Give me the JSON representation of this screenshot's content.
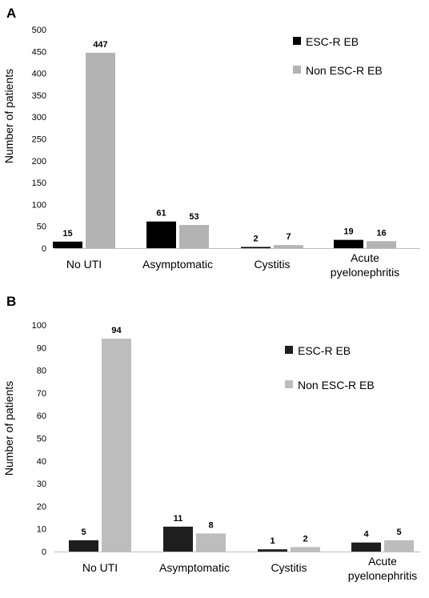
{
  "chart_data": [
    {
      "type": "bar",
      "panel": "A",
      "categories": [
        "No UTI",
        "Asymptomatic",
        "Cystitis",
        "Acute pyelonephritis"
      ],
      "series": [
        {
          "name": "ESC-R EB",
          "values": [
            15,
            61,
            2,
            19
          ],
          "color": "#000000"
        },
        {
          "name": "Non ESC-R EB",
          "values": [
            447,
            53,
            7,
            16
          ],
          "color": "#b3b3b3"
        }
      ],
      "ylabel": "Number of patients",
      "ylim": [
        0,
        500
      ],
      "yticks": [
        0,
        50,
        100,
        150,
        200,
        250,
        300,
        350,
        400,
        450,
        500
      ],
      "legend": "top-right",
      "grid": false
    },
    {
      "type": "bar",
      "panel": "B",
      "categories": [
        "No UTI",
        "Asymptomatic",
        "Cystitis",
        "Acute pyelonephritis"
      ],
      "series": [
        {
          "name": "ESC-R EB",
          "values": [
            5,
            11,
            1,
            4
          ],
          "color": "#1e1e1e"
        },
        {
          "name": "Non ESC-R EB",
          "values": [
            94,
            8,
            2,
            5
          ],
          "color": "#bdbdbd"
        }
      ],
      "ylabel": "Number of patients",
      "ylim": [
        0,
        100
      ],
      "yticks": [
        0,
        10,
        20,
        30,
        40,
        50,
        60,
        70,
        80,
        90,
        100
      ],
      "legend": "top-right",
      "grid": false
    }
  ]
}
